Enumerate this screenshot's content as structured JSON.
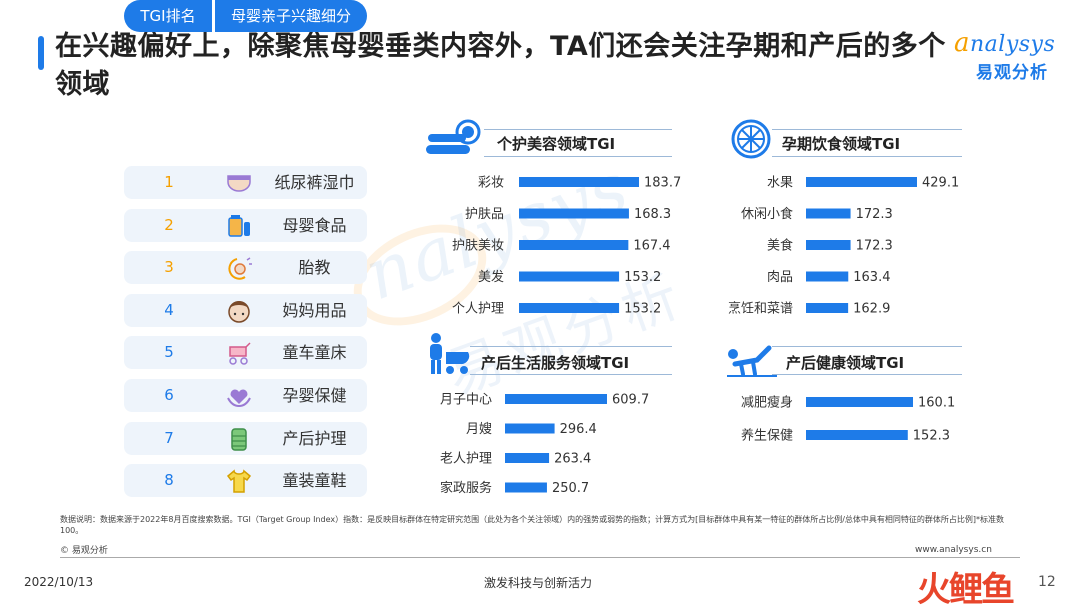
{
  "title": "在兴趣偏好上，除聚焦母婴垂类内容外，TA们还会关注孕期和产后的多个领域",
  "logo": {
    "en": "nalysys",
    "en_a": "a",
    "zh": "易观分析"
  },
  "watermark": {
    "en": "nalysys",
    "zh": "易观分析"
  },
  "table": {
    "header_rank": "TGI排名",
    "header_category": "母婴亲子兴趣细分",
    "rows": [
      {
        "rank": "1",
        "label": "纸尿裤湿巾",
        "icon": "diaper-icon"
      },
      {
        "rank": "2",
        "label": "母婴食品",
        "icon": "baby-food-icon"
      },
      {
        "rank": "3",
        "label": "胎教",
        "icon": "prenatal-icon"
      },
      {
        "rank": "4",
        "label": "妈妈用品",
        "icon": "mother-icon"
      },
      {
        "rank": "5",
        "label": "童车童床",
        "icon": "stroller-icon"
      },
      {
        "rank": "6",
        "label": "孕婴保健",
        "icon": "heart-hands-icon"
      },
      {
        "rank": "7",
        "label": "产后护理",
        "icon": "bottle-icon"
      },
      {
        "rank": "8",
        "label": "童装童鞋",
        "icon": "baby-clothes-icon"
      }
    ],
    "colors": {
      "rank_top": "#f5a000",
      "rank_rest": "#1e7be8"
    }
  },
  "colors": {
    "bar": "#1e7be8",
    "accent": "#1e7be8"
  },
  "chart_data": [
    {
      "type": "bar",
      "title": "个护美容领域TGI",
      "categories": [
        "彩妆",
        "护肤品",
        "护肤美妆",
        "美发",
        "个人护理"
      ],
      "values": [
        183.7,
        168.3,
        167.4,
        153.2,
        153.2
      ],
      "orientation": "horizontal",
      "xlim": [
        0,
        200
      ]
    },
    {
      "type": "bar",
      "title": "孕期饮食领域TGI",
      "categories": [
        "水果",
        "休闲小食",
        "美食",
        "肉品",
        "烹饪和菜谱"
      ],
      "values": [
        429.1,
        172.3,
        172.3,
        163.4,
        162.9
      ],
      "orientation": "horizontal",
      "xlim": [
        0,
        470
      ]
    },
    {
      "type": "bar",
      "title": "产后生活服务领域TGI",
      "categories": [
        "月子中心",
        "月嫂",
        "老人护理",
        "家政服务"
      ],
      "values": [
        609.7,
        296.4,
        263.4,
        250.7
      ],
      "orientation": "horizontal",
      "xlim": [
        0,
        670
      ]
    },
    {
      "type": "bar",
      "title": "产后健康领域TGI",
      "categories": [
        "减肥瘦身",
        "养生保健"
      ],
      "values": [
        160.1,
        152.3
      ],
      "orientation": "horizontal",
      "xlim": [
        0,
        176
      ]
    }
  ],
  "footer": {
    "note": "数据说明：数据来源于2022年8月百度搜索数据。TGI（Target Group Index）指数：是反映目标群体在特定研究范围（此处为各个关注领域）内的强势或弱势的指数；计算方式为[目标群体中具有某一特征的群体所占比例/总体中具有相同特征的群体所占比例]*标准数100。",
    "copyright": "© 易观分析",
    "url": "www.analysys.cn",
    "date": "2022/10/13",
    "slogan": "激发科技与创新活力",
    "brand": "火鲤鱼",
    "page": "12"
  }
}
